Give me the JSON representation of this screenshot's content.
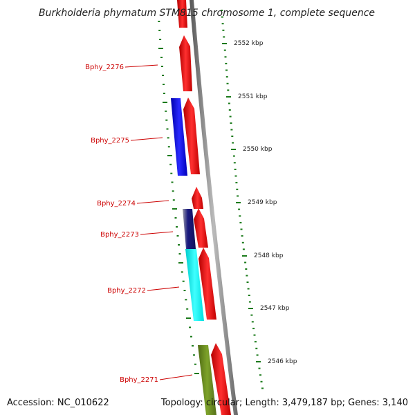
{
  "title": "Burkholderia phymatum STM815 chromosome 1, complete sequence",
  "footer": {
    "accession": "Accession: NC_010622",
    "topology": "Topology: circular; Length: 3,479,187 bp; Genes: 3,140"
  },
  "ticks": [
    {
      "label": "2552 kbp"
    },
    {
      "label": "2551 kbp"
    },
    {
      "label": "2550 kbp"
    },
    {
      "label": "2549 kbp"
    },
    {
      "label": "2548 kbp"
    },
    {
      "label": "2547 kbp"
    },
    {
      "label": "2546 kbp"
    }
  ],
  "genes": [
    {
      "label": "Bphy_2276",
      "color": "#ff0000"
    },
    {
      "label": "Bphy_2275",
      "color": "#ff0000"
    },
    {
      "label": "Bphy_2274",
      "color": "#ff0000"
    },
    {
      "label": "Bphy_2273",
      "color": "#ff0000"
    },
    {
      "label": "Bphy_2272",
      "color": "#ff0000"
    },
    {
      "label": "Bphy_2271",
      "color": "#ff0000"
    }
  ],
  "colors": {
    "forward_gene": "#ff0000",
    "reverse_blue": "#0000ee",
    "reverse_navy": "#1a1a80",
    "reverse_cyan": "#00ffff",
    "reverse_olive": "#6b8e23",
    "backbone": "#888888",
    "tick": "#1a7a1a",
    "label": "#cc0000"
  }
}
